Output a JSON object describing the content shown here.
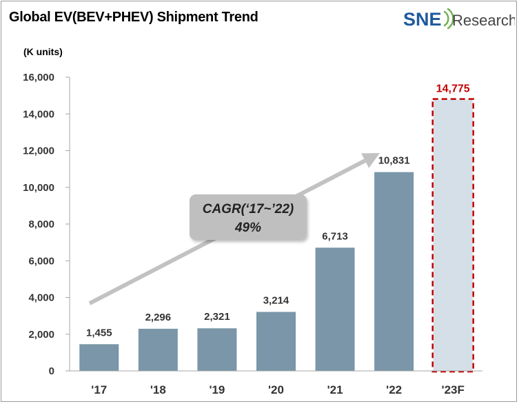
{
  "header": {
    "title": "Global EV(BEV+PHEV)  Shipment Trend",
    "unit": "(K units)"
  },
  "logo": {
    "brand": "SNE",
    "brand_suffix": "Research",
    "icon": "signal-waves-icon",
    "brand_color": "#1f5a9e",
    "suffix_color": "#444444",
    "wave_color": "#6ab04c"
  },
  "annotation": {
    "line1": "CAGR(‘17~’22)",
    "line2": "49%"
  },
  "colors": {
    "bar": "#7a96a8",
    "forecast_bar": "#d5dfe7",
    "forecast_border": "#c00000",
    "arrow": "#c2c2c2",
    "callout_fill": "#bfbfbf"
  },
  "chart_data": {
    "type": "bar",
    "categories": [
      "'17",
      "'18",
      "'19",
      "'20",
      "'21",
      "'22",
      "'23F"
    ],
    "values": [
      1455,
      2296,
      2321,
      3214,
      6713,
      10831,
      14775
    ],
    "value_labels": [
      "1,455",
      "2,296",
      "2,321",
      "3,214",
      "6,713",
      "10,831",
      "14,775"
    ],
    "forecast_index": 6,
    "title": "Global EV(BEV+PHEV)  Shipment Trend",
    "xlabel": "",
    "ylabel": "(K units)",
    "ylim": [
      0,
      16000
    ],
    "yticks": [
      0,
      2000,
      4000,
      6000,
      8000,
      10000,
      12000,
      14000,
      16000
    ],
    "ytick_labels": [
      "0",
      "2,000",
      "4,000",
      "6,000",
      "8,000",
      "10,000",
      "12,000",
      "14,000",
      "16,000"
    ],
    "grid": false,
    "legend": "none"
  }
}
